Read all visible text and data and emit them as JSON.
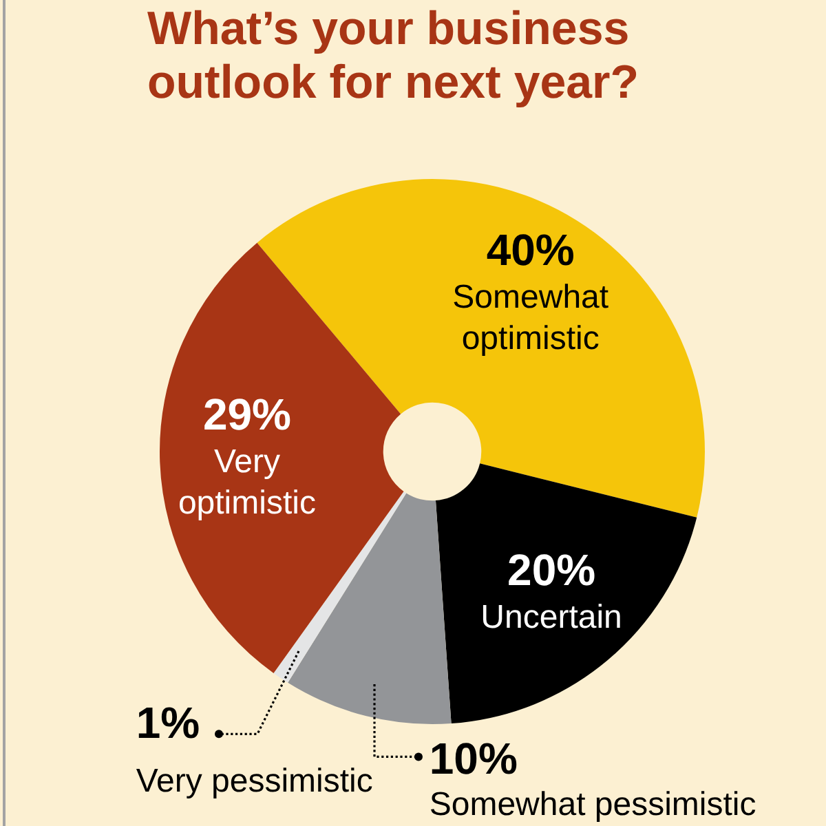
{
  "chart_data": {
    "type": "donut",
    "title": "What’s your business outlook for next year?",
    "categories": [
      "Somewhat optimistic",
      "Uncertain",
      "Somewhat pessimistic",
      "Very pessimistic",
      "Very optimistic"
    ],
    "values": [
      40,
      20,
      10,
      1,
      29
    ],
    "colors": [
      "#f5c50a",
      "#000000",
      "#939598",
      "#e4e5e6",
      "#a83515"
    ],
    "value_labels": [
      "40%",
      "20%",
      "10%",
      "1%",
      "29%"
    ]
  }
}
